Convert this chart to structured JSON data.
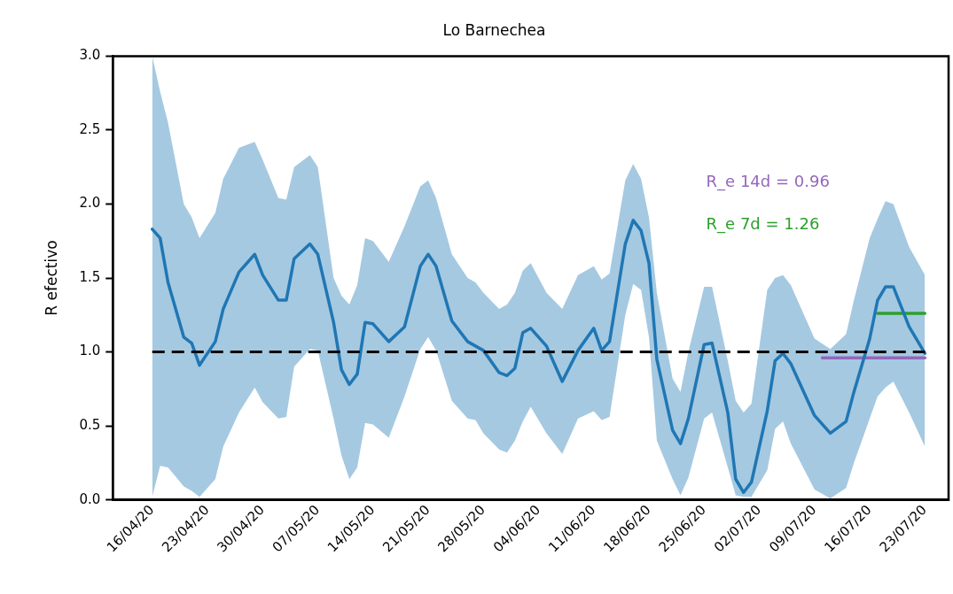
{
  "chart_data": {
    "type": "line",
    "title": "Lo Barnechea",
    "ylabel": "R efectivo",
    "xlim": [
      "--04-11",
      "--07-26"
    ],
    "xticks": [
      {
        "value": "--04-16",
        "label": "16/04/20"
      },
      {
        "value": "--04-23",
        "label": "23/04/20"
      },
      {
        "value": "--04-30",
        "label": "30/04/20"
      },
      {
        "value": "--05-07",
        "label": "07/05/20"
      },
      {
        "value": "--05-14",
        "label": "14/05/20"
      },
      {
        "value": "--05-21",
        "label": "21/05/20"
      },
      {
        "value": "--05-28",
        "label": "28/05/20"
      },
      {
        "value": "--06-04",
        "label": "04/06/20"
      },
      {
        "value": "--06-11",
        "label": "11/06/20"
      },
      {
        "value": "--06-18",
        "label": "18/06/20"
      },
      {
        "value": "--06-25",
        "label": "25/06/20"
      },
      {
        "value": "--07-02",
        "label": "02/07/20"
      },
      {
        "value": "--07-09",
        "label": "09/07/20"
      },
      {
        "value": "--07-16",
        "label": "16/07/20"
      },
      {
        "value": "--07-23",
        "label": "23/07/20"
      }
    ],
    "ylim": [
      0,
      3
    ],
    "yticks": [
      {
        "value": 0,
        "label": "0.0"
      },
      {
        "value": 0.5,
        "label": "0.5"
      },
      {
        "value": 1,
        "label": "1.0"
      },
      {
        "value": 1.5,
        "label": "1.5"
      },
      {
        "value": 2,
        "label": "2.0"
      },
      {
        "value": 2.5,
        "label": "2.5"
      },
      {
        "value": 3,
        "label": "3.0"
      }
    ],
    "grid": false,
    "legend": false,
    "marker": "none",
    "line_style": "solid",
    "ref_lines": [
      {
        "axis": "y",
        "value": 1,
        "color": "#000000",
        "line_style": "dashed"
      }
    ],
    "series": [
      {
        "color": "#1f77b4",
        "x": [
          "--04-16",
          "--04-17",
          "--04-18",
          "--04-20",
          "--04-21",
          "--04-22",
          "--04-24",
          "--04-25",
          "--04-27",
          "--04-29",
          "--04-30",
          "--05-02",
          "--05-03",
          "--05-04",
          "--05-06",
          "--05-07",
          "--05-09",
          "--05-10",
          "--05-11",
          "--05-12",
          "--05-13",
          "--05-14",
          "--05-16",
          "--05-18",
          "--05-20",
          "--05-21",
          "--05-22",
          "--05-24",
          "--05-26",
          "--05-27",
          "--05-28",
          "--05-30",
          "--05-31",
          "--06-01",
          "--06-02",
          "--06-03",
          "--06-05",
          "--06-07",
          "--06-09",
          "--06-11",
          "--06-12",
          "--06-13",
          "--06-15",
          "--06-16",
          "--06-17",
          "--06-18",
          "--06-19",
          "--06-21",
          "--06-22",
          "--06-23",
          "--06-25",
          "--06-26",
          "--06-28",
          "--06-29",
          "--06-30",
          "--07-01",
          "--07-03",
          "--07-04",
          "--07-05",
          "--07-06",
          "--07-09",
          "--07-11",
          "--07-13",
          "--07-14",
          "--07-16",
          "--07-17",
          "--07-18",
          "--07-19",
          "--07-21",
          "--07-23"
        ],
        "values": [
          1.83,
          1.77,
          1.47,
          1.1,
          1.06,
          0.91,
          1.07,
          1.29,
          1.54,
          1.66,
          1.52,
          1.35,
          1.35,
          1.63,
          1.73,
          1.66,
          1.2,
          0.88,
          0.78,
          0.85,
          1.2,
          1.19,
          1.07,
          1.17,
          1.58,
          1.66,
          1.58,
          1.21,
          1.07,
          1.04,
          1.01,
          0.86,
          0.84,
          0.89,
          1.13,
          1.16,
          1.04,
          0.8,
          1.01,
          1.16,
          1.01,
          1.07,
          1.73,
          1.89,
          1.82,
          1.6,
          0.95,
          0.47,
          0.38,
          0.55,
          1.05,
          1.06,
          0.59,
          0.14,
          0.05,
          0.12,
          0.6,
          0.94,
          0.99,
          0.92,
          0.57,
          0.45,
          0.53,
          0.73,
          1.09,
          1.35,
          1.44,
          1.44,
          1.17,
          0.99
        ],
        "upper": [
          3.0,
          2.76,
          2.55,
          2.0,
          1.91,
          1.77,
          1.94,
          2.17,
          2.38,
          2.42,
          2.3,
          2.04,
          2.03,
          2.25,
          2.33,
          2.25,
          1.5,
          1.38,
          1.32,
          1.45,
          1.77,
          1.75,
          1.61,
          1.85,
          2.12,
          2.16,
          2.04,
          1.66,
          1.5,
          1.47,
          1.4,
          1.29,
          1.32,
          1.4,
          1.55,
          1.6,
          1.4,
          1.29,
          1.52,
          1.58,
          1.49,
          1.53,
          2.16,
          2.27,
          2.17,
          1.91,
          1.4,
          0.82,
          0.73,
          1.0,
          1.44,
          1.44,
          0.94,
          0.67,
          0.59,
          0.65,
          1.42,
          1.5,
          1.52,
          1.45,
          1.09,
          1.02,
          1.12,
          1.35,
          1.77,
          1.9,
          2.02,
          2.0,
          1.71,
          1.52
        ],
        "lower": [
          0.02,
          0.23,
          0.22,
          0.09,
          0.06,
          0.02,
          0.14,
          0.36,
          0.59,
          0.76,
          0.66,
          0.55,
          0.56,
          0.9,
          1.02,
          1.01,
          0.55,
          0.3,
          0.14,
          0.22,
          0.52,
          0.51,
          0.42,
          0.7,
          1.02,
          1.1,
          1.01,
          0.67,
          0.55,
          0.54,
          0.45,
          0.34,
          0.32,
          0.4,
          0.53,
          0.63,
          0.45,
          0.31,
          0.55,
          0.6,
          0.54,
          0.56,
          1.25,
          1.46,
          1.42,
          1.1,
          0.4,
          0.14,
          0.03,
          0.15,
          0.55,
          0.59,
          0.22,
          0.03,
          0.02,
          0.02,
          0.2,
          0.48,
          0.53,
          0.38,
          0.07,
          0.01,
          0.08,
          0.25,
          0.55,
          0.7,
          0.76,
          0.8,
          0.59,
          0.36
        ]
      },
      {
        "name": "R_e 14d = 0.96",
        "color": "#9467bd",
        "x": [
          "--07-10",
          "--07-23"
        ],
        "values": [
          0.96,
          0.96
        ]
      },
      {
        "name": "R_e 7d = 1.26",
        "color": "#2ca02c",
        "x": [
          "--07-17",
          "--07-23"
        ],
        "values": [
          1.26,
          1.26
        ]
      }
    ]
  }
}
